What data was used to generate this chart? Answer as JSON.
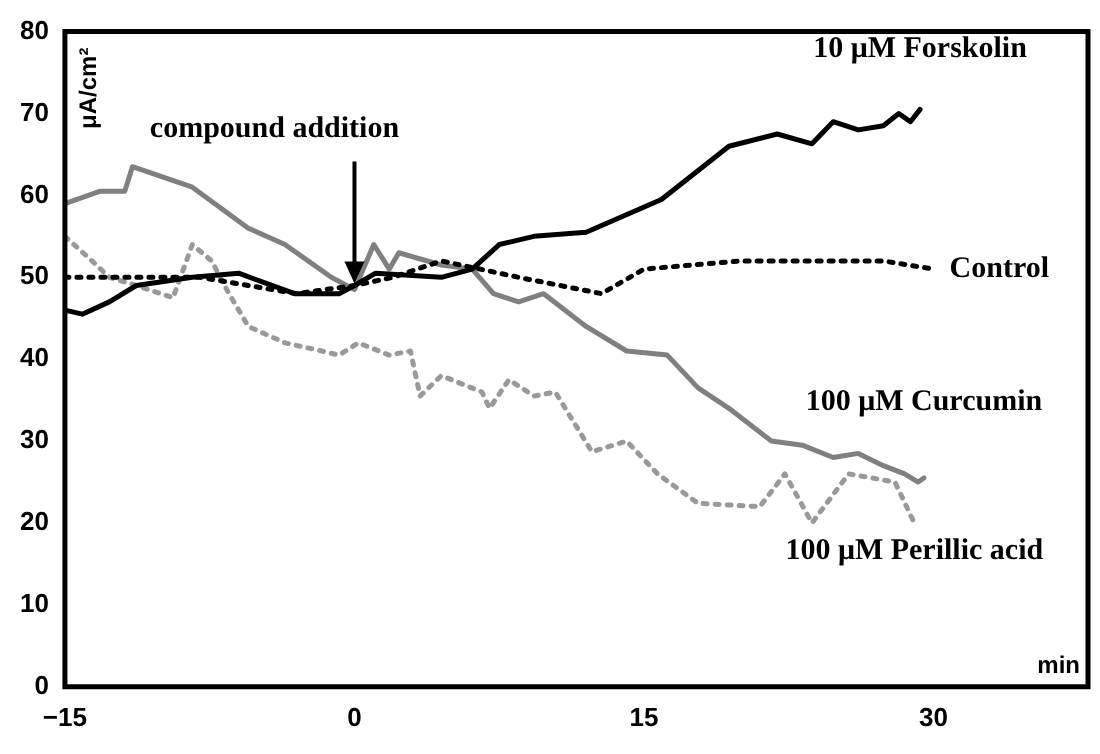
{
  "chart_data": {
    "type": "line",
    "xlabel": "min",
    "ylabel": "μA/cm²",
    "xlim": [
      -15,
      38
    ],
    "ylim": [
      0,
      80
    ],
    "xticks": [
      -15,
      0,
      15,
      30
    ],
    "yticks": [
      0,
      10,
      20,
      30,
      40,
      50,
      60,
      70,
      80
    ],
    "grid": false,
    "legend": false,
    "marker": "none",
    "annotations": [
      {
        "text": "compound addition",
        "x": 0,
        "y": 49
      }
    ],
    "series": [
      {
        "name": "10 μM Forskolin",
        "color": "#000000",
        "line_style": "solid",
        "x": [
          -15,
          -14.1,
          -12.7,
          -11.3,
          -8.4,
          -6,
          -3.1,
          -0.8,
          0,
          1.1,
          4.5,
          6.1,
          7.5,
          9.3,
          12,
          15.9,
          19.4,
          21.9,
          23.7,
          24.8,
          26.1,
          27.4,
          28.2,
          28.8,
          29.3
        ],
        "values": [
          46,
          45.5,
          47,
          49,
          50,
          50.5,
          48,
          48,
          49,
          50.5,
          50,
          51,
          54,
          55,
          55.5,
          59.5,
          66,
          67.5,
          66.3,
          69,
          68,
          68.5,
          70,
          69,
          70.5
        ]
      },
      {
        "name": "Control",
        "color": "#000000",
        "line_style": "dotted",
        "x": [
          -15,
          -8,
          -3,
          0,
          2,
          4.5,
          8.5,
          12.8,
          15,
          20,
          25,
          27.4,
          30
        ],
        "values": [
          50,
          50,
          48,
          49,
          50,
          52,
          50,
          48,
          51,
          52,
          52,
          52,
          51
        ]
      },
      {
        "name": "100 μM Curcumin",
        "color": "#808080",
        "line_style": "solid",
        "x": [
          -15,
          -13.2,
          -11.9,
          -11.5,
          -8.4,
          -5.5,
          -3.6,
          -1.2,
          0,
          1,
          1.8,
          2.3,
          4.5,
          6.1,
          7.2,
          8.5,
          9.8,
          12,
          14.1,
          16.2,
          17.8,
          19.4,
          21.6,
          23.2,
          24.8,
          26.1,
          27.4,
          28.5,
          29.2,
          29.5
        ],
        "values": [
          59,
          60.5,
          60.5,
          63.5,
          61,
          56,
          54,
          50,
          48.5,
          54,
          51,
          53,
          51.5,
          51,
          48,
          47,
          48,
          44,
          41,
          40.5,
          36.5,
          34,
          30,
          29.5,
          28,
          28.5,
          27,
          26,
          25,
          25.5
        ]
      },
      {
        "name": "100 μM Perillic acid",
        "color": "#999999",
        "line_style": "dotted",
        "x": [
          -15,
          -13.6,
          -12.7,
          -11.3,
          -9.4,
          -8.4,
          -7.4,
          -6.5,
          -5.5,
          -3.6,
          -1.7,
          -0.8,
          0.2,
          1.8,
          2.9,
          3.4,
          4.5,
          6.6,
          7,
          8,
          9.3,
          10.4,
          12.3,
          14.1,
          15.7,
          17.8,
          21,
          22.3,
          23.7,
          25.6,
          28,
          29
        ],
        "values": [
          55,
          52,
          50,
          49,
          47.5,
          54,
          52,
          48,
          44,
          42,
          41,
          40.5,
          42,
          40.5,
          41,
          35.5,
          38,
          36,
          34,
          37.5,
          35.5,
          36,
          28.7,
          30,
          26,
          22.4,
          22,
          26,
          20,
          26,
          25,
          20
        ]
      }
    ]
  }
}
